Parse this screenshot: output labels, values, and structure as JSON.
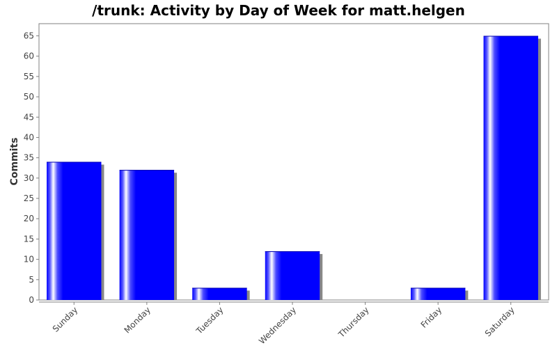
{
  "chart_data": {
    "type": "bar",
    "title": "/trunk: Activity by Day of Week for matt.helgen",
    "xlabel": "",
    "ylabel": "Commits",
    "categories": [
      "Sunday",
      "Monday",
      "Tuesday",
      "Wednesday",
      "Thursday",
      "Friday",
      "Saturday"
    ],
    "values": [
      34,
      32,
      3,
      12,
      0,
      3,
      65
    ],
    "ylim": [
      0,
      68
    ],
    "yticks": [
      0,
      5,
      10,
      15,
      20,
      25,
      30,
      35,
      40,
      45,
      50,
      55,
      60,
      65
    ],
    "bar_color": "#0000ff",
    "shadow_color": "#888888",
    "grid": false,
    "legend": "none"
  }
}
